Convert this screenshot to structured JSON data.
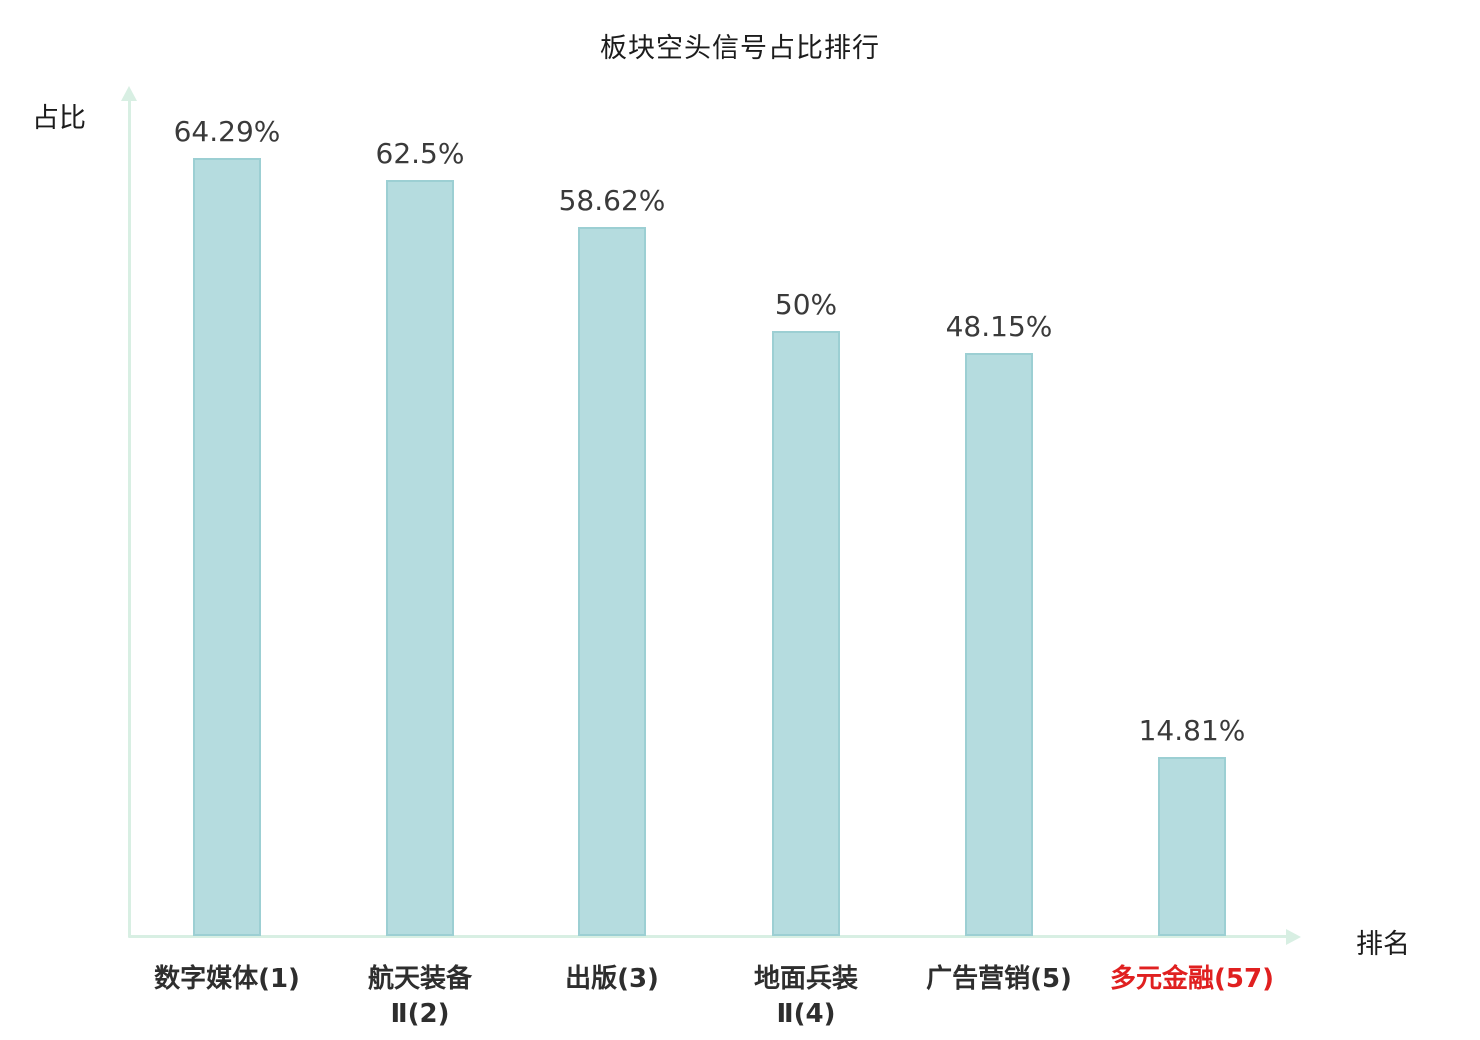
{
  "chart_data": {
    "type": "bar",
    "title": "板块空头信号占比排行",
    "xlabel": "排名",
    "ylabel": "占比",
    "categories": [
      "数字媒体(1)",
      "航天装备Ⅱ(2)",
      "出版(3)",
      "地面兵装Ⅱ(4)",
      "广告营销(5)",
      "多元金融(57)"
    ],
    "category_display_lines": [
      "数字媒体(1)",
      "航天装备\nⅡ(2)",
      "出版(3)",
      "地面兵装\nⅡ(4)",
      "广告营销(5)",
      "多元金融(57)"
    ],
    "values": [
      64.29,
      62.5,
      58.62,
      50,
      48.15,
      14.81
    ],
    "value_labels": [
      "64.29%",
      "62.5%",
      "58.62%",
      "50%",
      "48.15%",
      "14.81%"
    ],
    "highlight_index": 5,
    "ylim": [
      0,
      70
    ],
    "grid": false,
    "legend": "none",
    "colors": {
      "bar_fill": "#b5dcdf",
      "bar_border": "#9ccfd3",
      "axis": "#d8efe3",
      "value_label": "#3a3a3a",
      "category_label": "#2e2e2e",
      "highlight_label": "#e02020",
      "title": "#1c1c1c"
    }
  }
}
